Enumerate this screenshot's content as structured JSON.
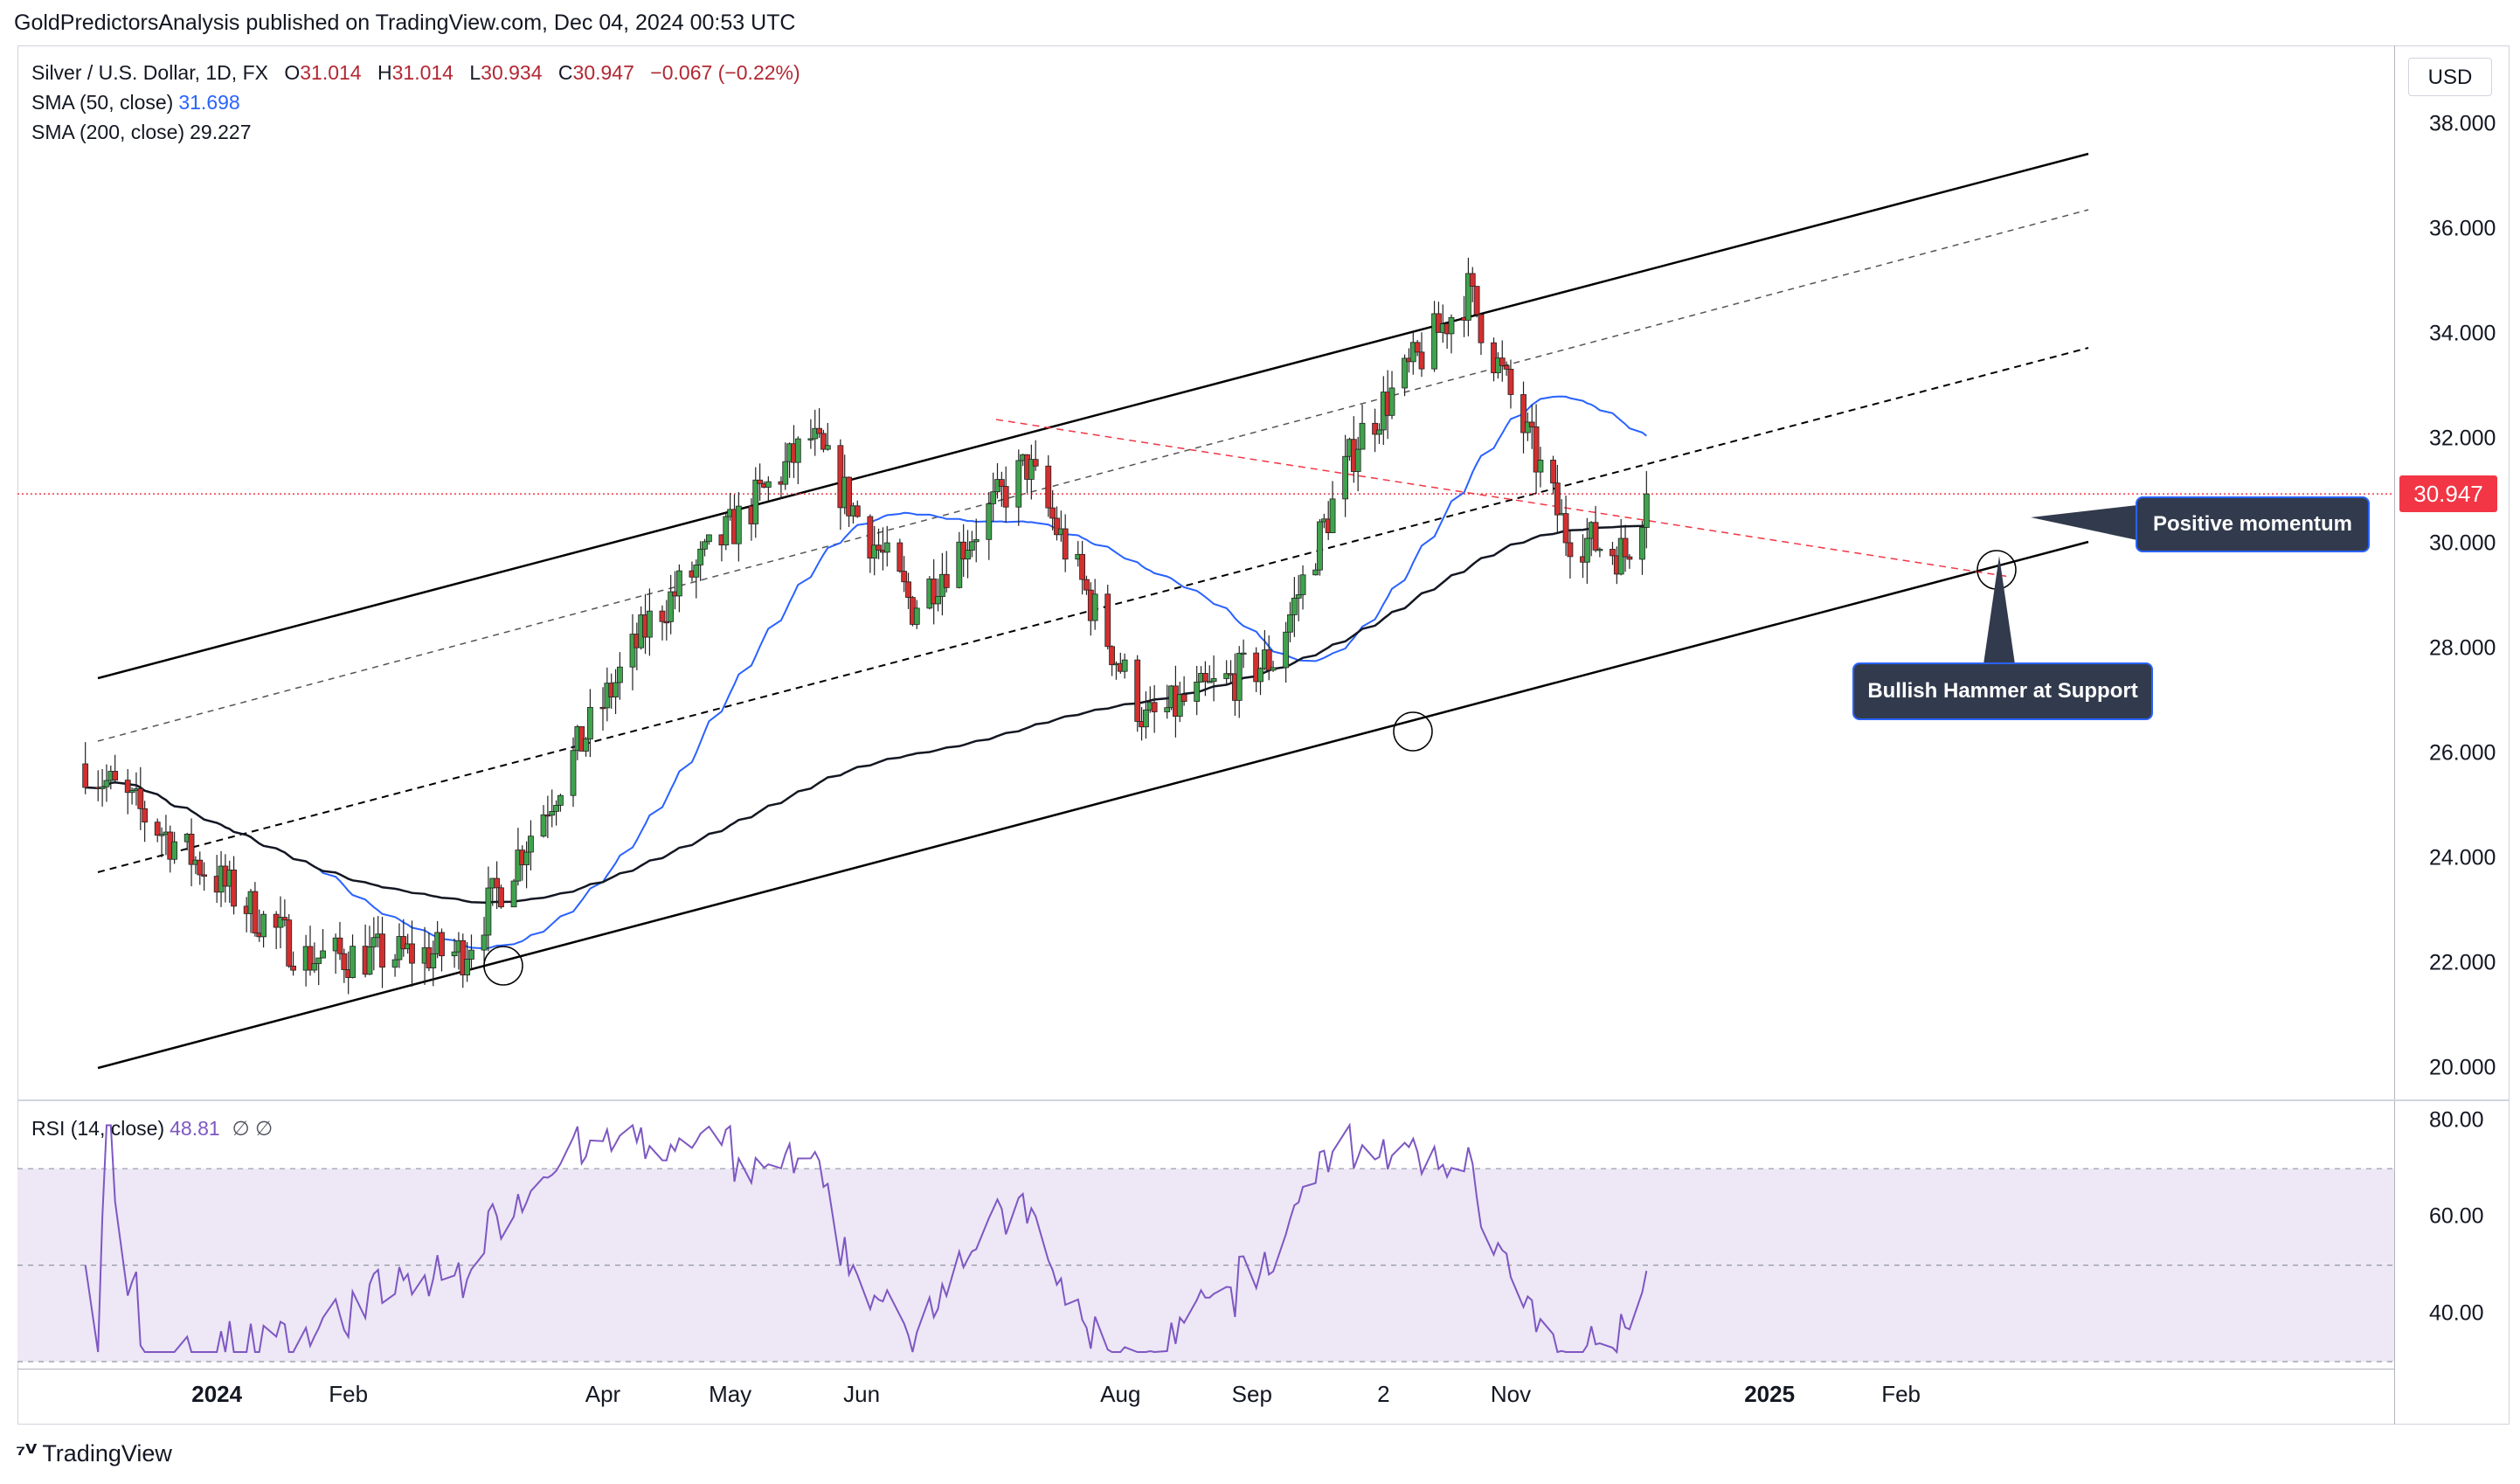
{
  "header": {
    "published": "GoldPredictorsAnalysis published on TradingView.com, Dec 04, 2024 00:53 UTC"
  },
  "legend": {
    "symbol": "Silver / U.S. Dollar, 1D, FX",
    "open_label": "O",
    "open": "31.014",
    "high_label": "H",
    "high": "31.014",
    "low_label": "L",
    "low": "30.934",
    "close_label": "C",
    "close": "30.947",
    "change": "−0.067 (−0.22%)",
    "sma50_label": "SMA (50, close)",
    "sma50_value": "31.698",
    "sma200_label": "SMA (200, close)",
    "sma200_value": "29.227"
  },
  "price_axis": {
    "currency": "USD",
    "last_price": "30.947",
    "ticks": [
      "38.000",
      "36.000",
      "34.000",
      "32.000",
      "30.000",
      "28.000",
      "26.000",
      "24.000",
      "22.000",
      "20.000"
    ]
  },
  "rsi": {
    "label": "RSI (14, close)",
    "value": "48.81",
    "extra": "∅  ∅",
    "ticks": [
      "80.00",
      "60.00",
      "40.00"
    ]
  },
  "time_axis": {
    "labels": [
      {
        "text": "2024",
        "bold": true,
        "date": "2024-01-01"
      },
      {
        "text": "Feb",
        "bold": false,
        "date": "2024-02-01"
      },
      {
        "text": "Apr",
        "bold": false,
        "date": "2024-04-01"
      },
      {
        "text": "May",
        "bold": false,
        "date": "2024-05-01"
      },
      {
        "text": "Jun",
        "bold": false,
        "date": "2024-06-01"
      },
      {
        "text": "Aug",
        "bold": false,
        "date": "2024-08-01"
      },
      {
        "text": "Sep",
        "bold": false,
        "date": "2024-09-01"
      },
      {
        "text": "2",
        "bold": false,
        "date": "2024-10-02"
      },
      {
        "text": "Nov",
        "bold": false,
        "date": "2024-11-01"
      },
      {
        "text": "2025",
        "bold": true,
        "date": "2025-01-01"
      },
      {
        "text": "Feb",
        "bold": false,
        "date": "2025-02-01"
      }
    ]
  },
  "annotations": {
    "positive_momentum": "Positive momentum",
    "bullish_hammer": "Bullish Hammer at Support"
  },
  "brand": {
    "name": "TradingView"
  },
  "colors": {
    "up": "#26a69a",
    "down": "#ef5350",
    "up_candle": "#3fa34d",
    "down_candle": "#d32f2f",
    "sma50": "#2962ff",
    "sma200": "#131722",
    "rsi": "#7e57c2",
    "rsi_band": "#ede7f6",
    "last_price": "#f23645",
    "callout_bg": "#323b4d",
    "callout_border": "#2962ff"
  },
  "chart_data": {
    "type": "candlestick",
    "title": "Silver / U.S. Dollar, 1D, FX",
    "ylim": [
      19.5,
      39
    ],
    "y_scale": "linear",
    "grid": false,
    "key_points": [
      {
        "date": "2023-12-01",
        "close": 25.8
      },
      {
        "date": "2024-01-22",
        "close": 22.1
      },
      {
        "date": "2024-02-28",
        "close": 22.2
      },
      {
        "date": "2024-04-12",
        "close": 28.5
      },
      {
        "date": "2024-05-20",
        "close": 32.0
      },
      {
        "date": "2024-06-13",
        "close": 28.8
      },
      {
        "date": "2024-07-10",
        "close": 31.5
      },
      {
        "date": "2024-08-07",
        "close": 26.6
      },
      {
        "date": "2024-09-06",
        "close": 27.8
      },
      {
        "date": "2024-09-26",
        "close": 32.0
      },
      {
        "date": "2024-10-22",
        "close": 34.8
      },
      {
        "date": "2024-11-14",
        "close": 30.2
      },
      {
        "date": "2024-11-28",
        "close": 29.8
      },
      {
        "date": "2024-12-03",
        "close": 30.947
      }
    ],
    "indicators": [
      {
        "name": "SMA (50, close)",
        "last": 31.698
      },
      {
        "name": "SMA (200, close)",
        "last": 29.227
      },
      {
        "name": "RSI (14, close)",
        "last": 48.81,
        "ylim": [
          30,
          80
        ],
        "bands": [
          30,
          50,
          70
        ]
      }
    ]
  }
}
